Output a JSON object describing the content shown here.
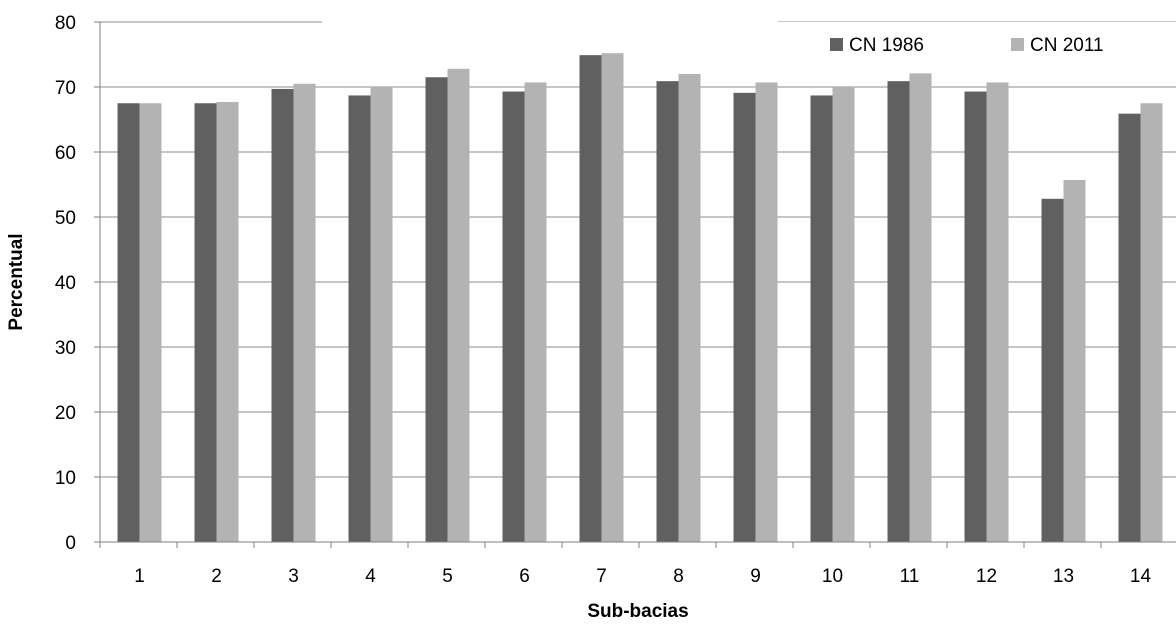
{
  "chart_data": {
    "type": "bar",
    "xlabel": "Sub-bacias",
    "ylabel": "Percentual",
    "ylim": [
      0,
      80
    ],
    "yticks": [
      0,
      10,
      20,
      30,
      40,
      50,
      60,
      70,
      80
    ],
    "grid": true,
    "legend_position": "top-right",
    "categories": [
      "1",
      "2",
      "3",
      "4",
      "5",
      "6",
      "7",
      "8",
      "9",
      "10",
      "11",
      "12",
      "13",
      "14"
    ],
    "series": [
      {
        "name": "CN 1986",
        "color": "#606060",
        "values": [
          67.5,
          67.5,
          69.7,
          68.7,
          71.5,
          69.3,
          74.9,
          70.9,
          69.1,
          68.7,
          70.9,
          69.3,
          52.8,
          65.9
        ]
      },
      {
        "name": "CN 2011",
        "color": "#b3b3b3",
        "values": [
          67.5,
          67.7,
          70.5,
          70.0,
          72.8,
          70.7,
          75.2,
          72.0,
          70.7,
          70.0,
          72.1,
          70.7,
          55.7,
          67.5
        ]
      }
    ]
  }
}
